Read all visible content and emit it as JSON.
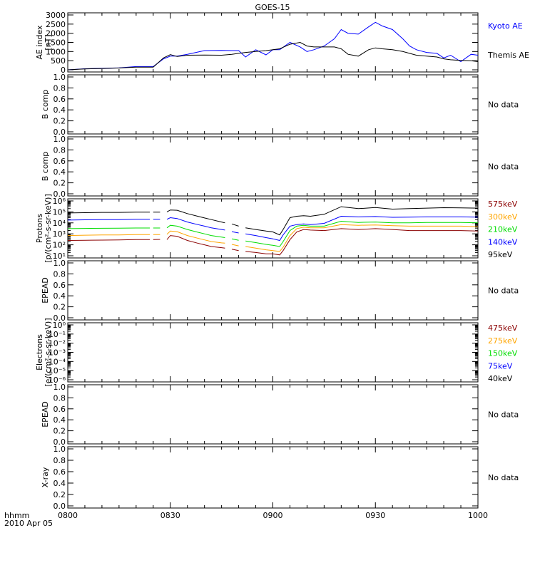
{
  "title": "GOES-15",
  "x_axis": {
    "ticks": [
      "0800",
      "0830",
      "0900",
      "0930",
      "1000"
    ],
    "corner_label_1": "hhmm",
    "corner_label_2": "2010 Apr 05"
  },
  "colors": {
    "black": "#000000",
    "blue": "#0000ff",
    "green": "#00dd00",
    "orange": "#ffa500",
    "darkred": "#8b0000"
  },
  "chart_data": [
    {
      "type": "line",
      "panel": "ae",
      "ylabel_1": "AE index",
      "ylabel_2": "[nT]",
      "ylim": [
        0,
        3000
      ],
      "yticks": [
        "0",
        "500",
        "1000",
        "1500",
        "2000",
        "2500",
        "3000"
      ],
      "series": [
        {
          "name": "Kyoto AE",
          "color": "#0000ff",
          "x": [
            0,
            5,
            10,
            15,
            20,
            25,
            28,
            30,
            32,
            35,
            40,
            45,
            48,
            50,
            52,
            55,
            58,
            60,
            62,
            65,
            68,
            70,
            72,
            75,
            78,
            80,
            82,
            85,
            88,
            90,
            92,
            95,
            98,
            100,
            102,
            105,
            108,
            110,
            112,
            115,
            118,
            120
          ],
          "y": [
            0,
            60,
            80,
            110,
            180,
            180,
            600,
            750,
            750,
            850,
            1050,
            1060,
            1050,
            1050,
            700,
            1100,
            820,
            1100,
            1100,
            1500,
            1250,
            1000,
            1100,
            1300,
            1700,
            2200,
            2000,
            1950,
            2350,
            2600,
            2400,
            2200,
            1700,
            1300,
            1100,
            950,
            900,
            650,
            800,
            450,
            850,
            800
          ]
        },
        {
          "name": "Themis AE",
          "color": "#000000",
          "x": [
            0,
            5,
            10,
            15,
            20,
            25,
            28,
            30,
            32,
            35,
            40,
            45,
            48,
            50,
            52,
            55,
            58,
            60,
            62,
            65,
            68,
            70,
            72,
            75,
            78,
            80,
            82,
            85,
            88,
            90,
            92,
            95,
            98,
            100,
            102,
            105,
            108,
            110,
            112,
            115,
            118,
            120
          ],
          "y": [
            0,
            50,
            70,
            100,
            150,
            150,
            650,
            830,
            730,
            800,
            810,
            800,
            850,
            900,
            950,
            1000,
            1050,
            1100,
            1150,
            1400,
            1500,
            1300,
            1250,
            1250,
            1250,
            1150,
            850,
            750,
            1100,
            1200,
            1150,
            1100,
            1000,
            900,
            800,
            750,
            700,
            600,
            550,
            520,
            500,
            450
          ]
        }
      ],
      "status_text": ""
    },
    {
      "type": "line",
      "panel": "b-comp-1",
      "ylabel_1": "B comp",
      "ylabel_2": "",
      "ylim": [
        0,
        1
      ],
      "yticks": [
        "0.0",
        "0.2",
        "0.4",
        "0.6",
        "0.8",
        "1.0"
      ],
      "series": [],
      "status_text": "No data"
    },
    {
      "type": "line",
      "panel": "b-comp-2",
      "ylabel_1": "B comp",
      "ylabel_2": "",
      "ylim": [
        0,
        1
      ],
      "yticks": [
        "0.0",
        "0.2",
        "0.4",
        "0.6",
        "0.8",
        "1.0"
      ],
      "series": [],
      "status_text": "No data"
    },
    {
      "type": "line",
      "panel": "protons",
      "ylabel_1": "Protons",
      "ylabel_2": "[p/(cm²-s-sr-keV)]",
      "yscale": "log",
      "ylim": [
        10,
        1000000
      ],
      "yticks": [
        "10¹",
        "10²",
        "10³",
        "10⁴",
        "10⁵",
        "10⁶"
      ],
      "series": [
        {
          "name": "575keV",
          "color": "#8b0000",
          "x": [
            0,
            5,
            10,
            15,
            20,
            24,
            null,
            25,
            27,
            null,
            29,
            30,
            32,
            35,
            38,
            40,
            42,
            45,
            46,
            null,
            48,
            50,
            null,
            52,
            55,
            58,
            60,
            62,
            63,
            65,
            67,
            69,
            71,
            75,
            80,
            85,
            90,
            95,
            100,
            105,
            110,
            115,
            120
          ],
          "y": [
            250,
            260,
            270,
            280,
            300,
            300,
            null,
            300,
            310,
            null,
            300,
            700,
            600,
            250,
            140,
            100,
            70,
            55,
            50,
            null,
            40,
            30,
            null,
            25,
            20,
            15,
            15,
            12,
            30,
            300,
            1500,
            2500,
            2200,
            2000,
            3000,
            2500,
            3000,
            2500,
            2000,
            2000,
            2000,
            2000,
            1800
          ]
        },
        {
          "name": "300keV",
          "color": "#ffa500",
          "x": [
            0,
            5,
            10,
            15,
            20,
            24,
            null,
            25,
            27,
            null,
            29,
            30,
            32,
            35,
            38,
            40,
            42,
            45,
            46,
            null,
            48,
            50,
            null,
            52,
            55,
            58,
            60,
            62,
            63,
            65,
            67,
            69,
            71,
            75,
            80,
            85,
            90,
            95,
            100,
            105,
            110,
            115,
            120
          ],
          "y": [
            700,
            750,
            800,
            800,
            850,
            850,
            null,
            850,
            850,
            null,
            900,
            1800,
            1600,
            700,
            400,
            280,
            200,
            150,
            140,
            null,
            110,
            80,
            null,
            70,
            50,
            35,
            30,
            25,
            60,
            700,
            3000,
            4000,
            3500,
            3500,
            7000,
            6000,
            6500,
            5500,
            5000,
            5000,
            5000,
            5000,
            4500
          ]
        },
        {
          "name": "210keV",
          "color": "#00dd00",
          "x": [
            0,
            5,
            10,
            15,
            20,
            24,
            null,
            25,
            27,
            null,
            29,
            30,
            32,
            35,
            38,
            40,
            42,
            45,
            46,
            null,
            48,
            50,
            null,
            52,
            55,
            58,
            60,
            62,
            63,
            65,
            67,
            69,
            71,
            75,
            80,
            85,
            90,
            95,
            100,
            105,
            110,
            115,
            120
          ],
          "y": [
            3000,
            3100,
            3200,
            3300,
            3400,
            3400,
            null,
            3400,
            3400,
            null,
            3500,
            6000,
            5000,
            2500,
            1400,
            1000,
            700,
            500,
            450,
            null,
            350,
            260,
            null,
            220,
            160,
            110,
            90,
            70,
            200,
            2000,
            5000,
            6000,
            5000,
            5000,
            14000,
            11000,
            12000,
            10000,
            10000,
            11000,
            11000,
            11000,
            10000
          ]
        },
        {
          "name": "140keV",
          "color": "#0000ff",
          "x": [
            0,
            5,
            10,
            15,
            20,
            24,
            null,
            25,
            27,
            null,
            29,
            30,
            32,
            35,
            38,
            40,
            42,
            45,
            46,
            null,
            48,
            50,
            null,
            52,
            55,
            58,
            60,
            62,
            63,
            65,
            67,
            69,
            71,
            75,
            80,
            85,
            90,
            95,
            100,
            105,
            110,
            115,
            120
          ],
          "y": [
            18000,
            19000,
            20000,
            20000,
            21000,
            21000,
            null,
            21000,
            21000,
            null,
            21000,
            30000,
            25000,
            12000,
            7000,
            5000,
            3500,
            2500,
            2200,
            null,
            1600,
            1200,
            null,
            1000,
            700,
            450,
            350,
            250,
            800,
            5000,
            7000,
            8000,
            7000,
            9000,
            40000,
            35000,
            38000,
            32000,
            33000,
            35000,
            35000,
            35000,
            33000
          ]
        },
        {
          "name": "95keV",
          "color": "#000000",
          "x": [
            0,
            5,
            10,
            15,
            20,
            24,
            null,
            25,
            27,
            null,
            29,
            30,
            32,
            35,
            38,
            40,
            42,
            45,
            46,
            null,
            48,
            50,
            null,
            52,
            55,
            58,
            60,
            62,
            63,
            65,
            67,
            69,
            71,
            75,
            80,
            85,
            90,
            95,
            100,
            105,
            110,
            115,
            120
          ],
          "y": [
            80000,
            85000,
            90000,
            90000,
            95000,
            95000,
            null,
            95000,
            95000,
            null,
            100000,
            150000,
            140000,
            70000,
            40000,
            28000,
            20000,
            12000,
            10000,
            null,
            8000,
            5000,
            null,
            3500,
            2500,
            1800,
            1500,
            800,
            2500,
            30000,
            40000,
            45000,
            40000,
            60000,
            300000,
            200000,
            250000,
            180000,
            200000,
            220000,
            240000,
            230000,
            220000
          ]
        }
      ],
      "status_text": ""
    },
    {
      "type": "line",
      "panel": "epead-1",
      "ylabel_1": "EPEAD",
      "ylabel_2": "",
      "ylim": [
        0,
        1
      ],
      "yticks": [
        "0.0",
        "0.2",
        "0.4",
        "0.6",
        "0.8",
        "1.0"
      ],
      "series": [],
      "status_text": "No data"
    },
    {
      "type": "line",
      "panel": "electrons",
      "ylabel_1": "Electrons",
      "ylabel_2": "[e/(cm²-s-sr-keV)]",
      "yscale": "log",
      "ylim": [
        1e-06,
        1
      ],
      "yticks": [
        "10⁻⁶",
        "10⁻⁵",
        "10⁻⁴",
        "10⁻³",
        "10⁻²",
        "10⁻¹",
        "10⁰"
      ],
      "series": [],
      "legend": [
        {
          "name": "475keV",
          "color": "#8b0000"
        },
        {
          "name": "275keV",
          "color": "#ffa500"
        },
        {
          "name": "150keV",
          "color": "#00dd00"
        },
        {
          "name": "75keV",
          "color": "#0000ff"
        },
        {
          "name": "40keV",
          "color": "#000000"
        }
      ],
      "status_text": ""
    },
    {
      "type": "line",
      "panel": "epead-2",
      "ylabel_1": "EPEAD",
      "ylabel_2": "",
      "ylim": [
        0,
        1
      ],
      "yticks": [
        "0.0",
        "0.2",
        "0.4",
        "0.6",
        "0.8",
        "1.0"
      ],
      "series": [],
      "status_text": "No data"
    },
    {
      "type": "line",
      "panel": "x-ray",
      "ylabel_1": "X-ray",
      "ylabel_2": "",
      "ylim": [
        0,
        1
      ],
      "yticks": [
        "0.0",
        "0.2",
        "0.4",
        "0.6",
        "0.8",
        "1.0"
      ],
      "series": [],
      "status_text": "No data"
    }
  ]
}
